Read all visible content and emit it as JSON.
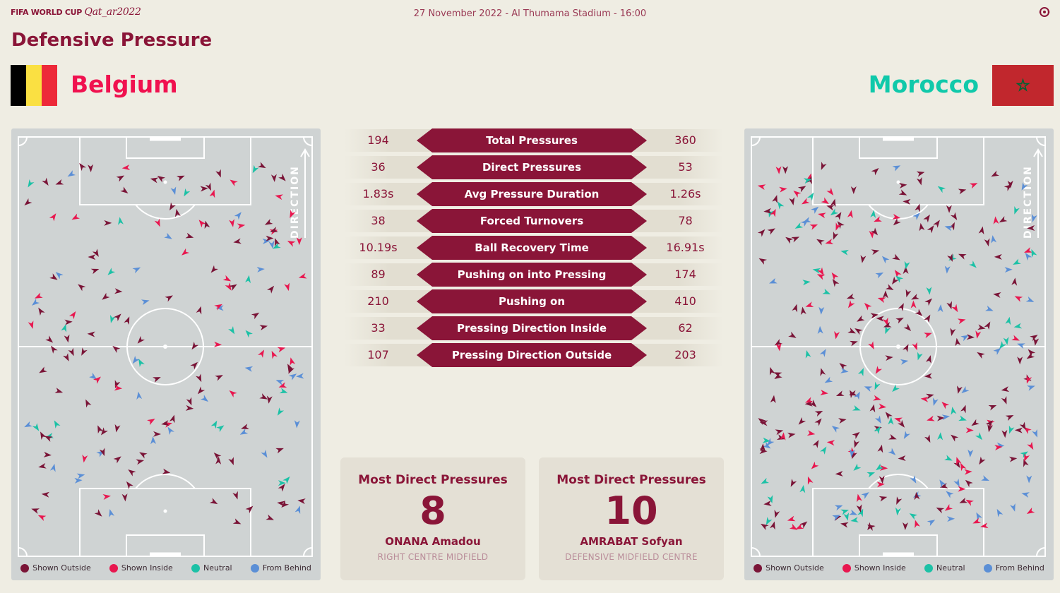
{
  "header": {
    "logo_prefix": "FIFA WORLD CUP",
    "logo_script": "Qat_ar2022",
    "match_info": "27 November 2022 - Al Thumama Stadium - 16:00",
    "settings_icon": "gear-icon"
  },
  "page_title": "Defensive Pressure",
  "home": {
    "name": "Belgium",
    "flag_colors": [
      "#000000",
      "#fae042",
      "#ed2939"
    ],
    "name_color": "#f0114f"
  },
  "away": {
    "name": "Morocco",
    "flag_colors": [
      "#c1272d",
      "#006233"
    ],
    "name_color": "#10c9aa"
  },
  "pitch": {
    "direction_label": "DIRECTION"
  },
  "legend": [
    {
      "label": "Shown Outside",
      "color": "#7a1437"
    },
    {
      "label": "Shown Inside",
      "color": "#e8174f"
    },
    {
      "label": "Neutral",
      "color": "#1cc1a6"
    },
    {
      "label": "From Behind",
      "color": "#5b8fd6"
    }
  ],
  "stats": [
    {
      "label": "Total Pressures",
      "home": "194",
      "away": "360"
    },
    {
      "label": "Direct Pressures",
      "home": "36",
      "away": "53"
    },
    {
      "label": "Avg Pressure Duration",
      "home": "1.83s",
      "away": "1.26s"
    },
    {
      "label": "Forced Turnovers",
      "home": "38",
      "away": "78"
    },
    {
      "label": "Ball Recovery Time",
      "home": "10.19s",
      "away": "16.91s"
    },
    {
      "label": "Pushing on into Pressing",
      "home": "89",
      "away": "174"
    },
    {
      "label": "Pushing on",
      "home": "210",
      "away": "410"
    },
    {
      "label": "Pressing Direction Inside",
      "home": "33",
      "away": "62"
    },
    {
      "label": "Pressing Direction Outside",
      "home": "107",
      "away": "203"
    }
  ],
  "cards": {
    "home": {
      "title": "Most Direct Pressures",
      "number": "8",
      "player": "ONANA Amadou",
      "position": "RIGHT CENTRE MIDFIELD"
    },
    "away": {
      "title": "Most Direct Pressures",
      "number": "10",
      "player": "AMRABAT Sofyan",
      "position": "DEFENSIVE MIDFIELD CENTRE"
    }
  }
}
